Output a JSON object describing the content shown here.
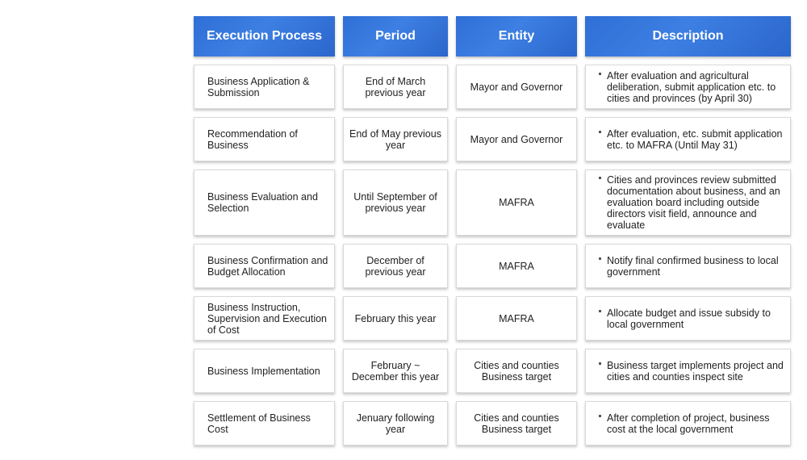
{
  "headers": [
    "Execution Process",
    "Period",
    "Entity",
    "Description"
  ],
  "rows": [
    {
      "process": "Business Application & Submission",
      "period": "End of March previous year",
      "entity": "Mayor and Governor",
      "description": "After evaluation and agricultural deliberation, submit application etc. to cities and provinces (by April 30)"
    },
    {
      "process": "Recommendation of Business",
      "period": "End of May previous year",
      "entity": "Mayor and Governor",
      "description": "After evaluation, etc. submit application etc. to MAFRA (Until May 31)"
    },
    {
      "process": "Business Evaluation and Selection",
      "period": "Until September of previous year",
      "entity": "MAFRA",
      "description": "Cities and provinces review submitted documentation about business, and an evaluation board including outside directors visit field, announce and evaluate"
    },
    {
      "process": "Business Confirmation and Budget Allocation",
      "period": "December of previous year",
      "entity": "MAFRA",
      "description": "Notify final confirmed business to local government"
    },
    {
      "process": "Business Instruction, Supervision and Execution of Cost",
      "period": "February this year",
      "entity": "MAFRA",
      "description": "Allocate budget and issue subsidy to local government"
    },
    {
      "process": "Business Implementation",
      "period": "February ~ December this year",
      "entity": "Cities and counties Business target",
      "description": "Business target implements project and cities and counties inspect site"
    },
    {
      "process": "Settlement of Business Cost",
      "period": "Jenuary following year",
      "entity": "Cities and counties Business target",
      "description": "After completion of project, business cost at the local government"
    }
  ]
}
